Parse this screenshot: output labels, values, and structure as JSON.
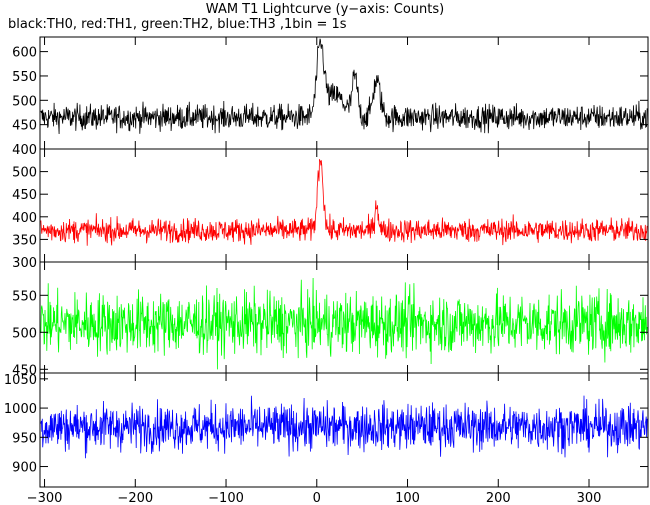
{
  "chart_data": {
    "type": "line",
    "title": "WAM T1 Lightcurve (y−axis: Counts)",
    "subtitle": "black:TH0, red:TH1, green:TH2, blue:TH3 ,1bin = 1s",
    "xlim": [
      -305,
      365
    ],
    "x_ticks": [
      -300,
      -200,
      -100,
      0,
      100,
      200,
      300
    ],
    "x_tick_labels": [
      "−300",
      "−200",
      "−100",
      "0",
      "100",
      "200",
      "300"
    ],
    "panels": [
      {
        "name": "TH0",
        "color": "#000000",
        "ylim": [
          400,
          630
        ],
        "y_ticks": [
          450,
          500,
          550,
          600
        ],
        "y_tick_labels": [
          "450",
          "500",
          "550",
          "600"
        ],
        "extra_bottom_label": "400",
        "baseline": 465,
        "noise": 24,
        "peaks": [
          {
            "t": 4,
            "amp": 140,
            "w": 4
          },
          {
            "t": 42,
            "amp": 80,
            "w": 3
          },
          {
            "t": 66,
            "amp": 75,
            "w": 4
          },
          {
            "t": 20,
            "amp": 45,
            "w": 10
          }
        ]
      },
      {
        "name": "TH1",
        "color": "#ff0000",
        "ylim": [
          300,
          550
        ],
        "y_ticks": [
          350,
          400,
          450,
          500
        ],
        "y_tick_labels": [
          "350",
          "400",
          "450",
          "500"
        ],
        "extra_bottom_label": "300",
        "baseline": 370,
        "noise": 24,
        "peaks": [
          {
            "t": 4,
            "amp": 160,
            "w": 3
          },
          {
            "t": 66,
            "amp": 60,
            "w": 2
          }
        ]
      },
      {
        "name": "TH2",
        "color": "#00ff00",
        "ylim": [
          445,
          595
        ],
        "y_ticks": [
          450,
          500,
          550
        ],
        "y_tick_labels": [
          "450",
          "500",
          "550"
        ],
        "baseline": 512,
        "noise": 38,
        "peaks": []
      },
      {
        "name": "TH3",
        "color": "#0000ff",
        "ylim": [
          865,
          1060
        ],
        "y_ticks": [
          900,
          950,
          1000,
          1050
        ],
        "y_tick_labels": [
          "900",
          "950",
          "1000",
          "1050"
        ],
        "baseline": 968,
        "noise": 36,
        "peaks": []
      }
    ]
  }
}
